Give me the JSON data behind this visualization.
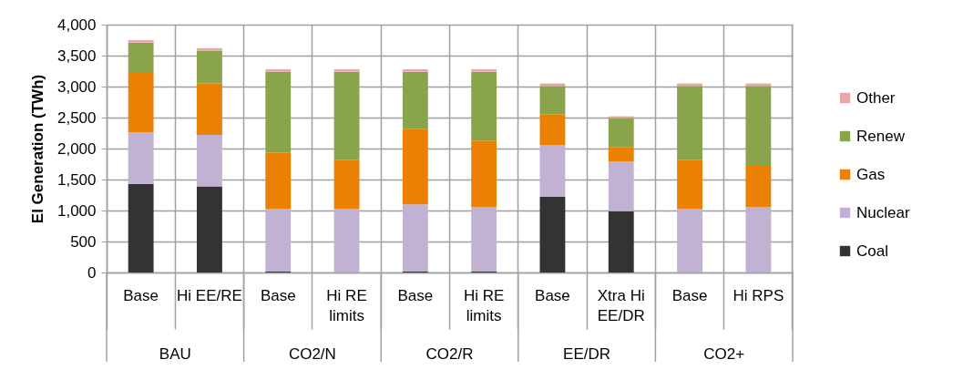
{
  "chart_data": {
    "type": "bar",
    "stacked": true,
    "ylabel": "El Generation (TWh)",
    "categories": [
      "Base",
      "Hi EE/RE",
      "Base",
      "Hi RE limits",
      "Base",
      "Hi RE limits",
      "Base",
      "Xtra Hi EE/DR",
      "Base",
      "Hi RPS"
    ],
    "annotations": [
      "BAU",
      "CO2/N",
      "CO2/R",
      "EE/DR",
      "CO2+"
    ],
    "series": [
      {
        "name": "Coal",
        "color": "#333333",
        "values": [
          1430,
          1390,
          20,
          0,
          20,
          20,
          1220,
          990,
          0,
          0
        ]
      },
      {
        "name": "Nuclear",
        "color": "#c1b2d4",
        "values": [
          830,
          830,
          1010,
          1030,
          1080,
          1040,
          840,
          800,
          1030,
          1060
        ]
      },
      {
        "name": "Gas",
        "color": "#eb8104",
        "values": [
          960,
          830,
          900,
          790,
          1220,
          1070,
          490,
          230,
          790,
          660
        ]
      },
      {
        "name": "Renew",
        "color": "#8aa44b",
        "values": [
          490,
          530,
          1310,
          1420,
          920,
          1110,
          460,
          470,
          1190,
          1290
        ]
      },
      {
        "name": "Other",
        "color": "#e5a8a8",
        "values": [
          40,
          40,
          40,
          40,
          40,
          40,
          40,
          30,
          40,
          40
        ]
      }
    ],
    "ylim": [
      0,
      4000
    ],
    "yticks": [
      0,
      500,
      {
        "value": 1000,
        "label": "1,000"
      },
      {
        "value": 1500,
        "label": "1,500"
      },
      {
        "value": 2000,
        "label": "2,000"
      },
      {
        "value": 2500,
        "label": "2,500"
      },
      {
        "value": 3000,
        "label": "3,000"
      },
      {
        "value": 3500,
        "label": "3,500"
      },
      {
        "value": 4000,
        "label": "4,000"
      }
    ],
    "grid": true,
    "legend": "right"
  }
}
